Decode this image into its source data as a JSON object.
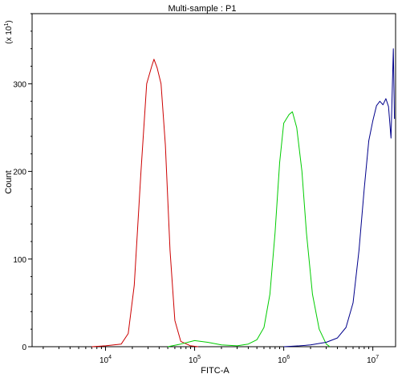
{
  "chart_data": {
    "type": "line",
    "title": "Multi-sample : P1",
    "xlabel": "FITC-A",
    "ylabel": "Count",
    "y_multiplier": "(x 10^1)",
    "x_scale": "log",
    "xlim": [
      1500,
      18000000
    ],
    "ylim": [
      0,
      380
    ],
    "x_ticks": [
      {
        "value": 10000,
        "base": "10",
        "exp": "4"
      },
      {
        "value": 100000,
        "base": "10",
        "exp": "5"
      },
      {
        "value": 1000000,
        "base": "10",
        "exp": "6"
      },
      {
        "value": 10000000,
        "base": "10",
        "exp": "7"
      }
    ],
    "y_ticks": [
      0,
      100,
      200,
      300
    ],
    "series": [
      {
        "color": "#cc0000",
        "points": [
          [
            7000,
            0
          ],
          [
            10000,
            1
          ],
          [
            15000,
            3
          ],
          [
            18000,
            15
          ],
          [
            21000,
            70
          ],
          [
            25000,
            200
          ],
          [
            29000,
            300
          ],
          [
            33000,
            320
          ],
          [
            35000,
            328
          ],
          [
            38000,
            318
          ],
          [
            42000,
            300
          ],
          [
            47000,
            230
          ],
          [
            53000,
            110
          ],
          [
            60000,
            30
          ],
          [
            70000,
            6
          ],
          [
            90000,
            1
          ],
          [
            110000,
            0
          ]
        ]
      },
      {
        "color": "#00cc00",
        "points": [
          [
            50000,
            0
          ],
          [
            70000,
            3
          ],
          [
            100000,
            7
          ],
          [
            140000,
            5
          ],
          [
            200000,
            2
          ],
          [
            300000,
            1
          ],
          [
            400000,
            3
          ],
          [
            500000,
            8
          ],
          [
            600000,
            22
          ],
          [
            700000,
            60
          ],
          [
            800000,
            130
          ],
          [
            900000,
            210
          ],
          [
            1000000,
            255
          ],
          [
            1150000,
            265
          ],
          [
            1250000,
            268
          ],
          [
            1400000,
            250
          ],
          [
            1600000,
            200
          ],
          [
            1800000,
            130
          ],
          [
            2100000,
            60
          ],
          [
            2500000,
            20
          ],
          [
            3000000,
            3
          ],
          [
            3300000,
            0
          ]
        ]
      },
      {
        "color": "#00008b",
        "points": [
          [
            1000000,
            0
          ],
          [
            1500000,
            1
          ],
          [
            2000000,
            2
          ],
          [
            3000000,
            5
          ],
          [
            4000000,
            10
          ],
          [
            5000000,
            22
          ],
          [
            6000000,
            50
          ],
          [
            7000000,
            110
          ],
          [
            8000000,
            180
          ],
          [
            9000000,
            235
          ],
          [
            10000000,
            258
          ],
          [
            11000000,
            275
          ],
          [
            12000000,
            280
          ],
          [
            13000000,
            276
          ],
          [
            14000000,
            283
          ],
          [
            15000000,
            274
          ],
          [
            16000000,
            238
          ],
          [
            17000000,
            340
          ],
          [
            17500000,
            260
          ]
        ]
      }
    ]
  }
}
